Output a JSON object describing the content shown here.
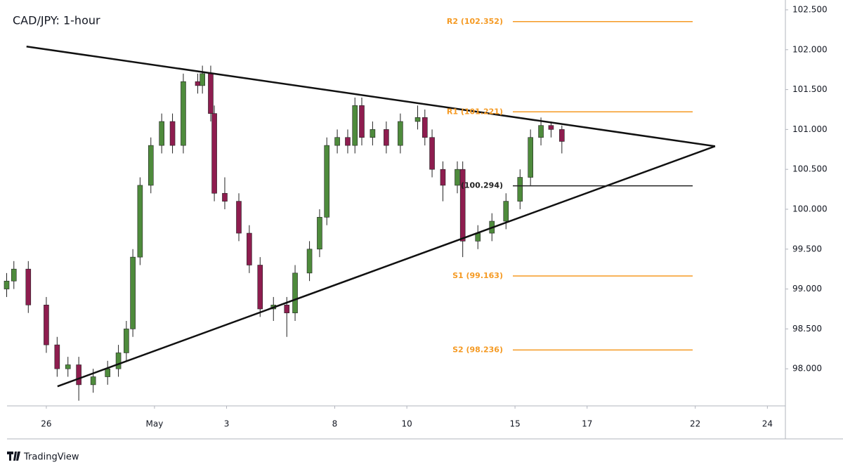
{
  "chart_data": {
    "type": "candlestick",
    "title": "CAD/JPY: 1-hour",
    "x": [
      -1.1,
      -0.9,
      -0.5,
      0,
      0.3,
      0.6,
      0.9,
      1.3,
      1.7,
      2.0,
      2.22,
      2.4,
      2.6,
      2.9,
      3.2,
      3.5,
      3.8,
      4.2,
      4.33,
      4.56,
      4.66,
      4.95,
      5.34,
      5.63,
      5.93,
      6.3,
      6.67,
      6.9,
      7.3,
      7.58,
      7.78,
      8.07,
      8.36,
      8.56,
      8.75,
      9.05,
      9.43,
      9.82,
      10.3,
      10.5,
      10.7,
      11.0,
      11.4,
      11.55,
      11.97,
      12.36,
      12.75,
      13.14,
      13.43,
      13.72,
      14.0,
      14.3
    ],
    "open": [
      99.0,
      99.1,
      99.25,
      98.8,
      98.3,
      98.0,
      98.05,
      97.8,
      97.9,
      98.0,
      98.2,
      98.5,
      99.4,
      100.3,
      100.8,
      101.1,
      100.8,
      101.6,
      101.55,
      101.7,
      101.2,
      100.2,
      100.1,
      99.7,
      99.3,
      98.75,
      98.8,
      98.7,
      99.2,
      99.5,
      99.9,
      100.8,
      100.9,
      100.8,
      101.3,
      100.9,
      101.0,
      100.8,
      101.1,
      101.15,
      100.9,
      100.5,
      100.3,
      100.5,
      99.6,
      99.7,
      99.85,
      100.1,
      100.4,
      100.9,
      101.05,
      101.0
    ],
    "high": [
      99.2,
      99.35,
      99.35,
      98.9,
      98.4,
      98.15,
      98.15,
      98.0,
      98.1,
      98.3,
      98.6,
      99.5,
      100.4,
      100.9,
      101.2,
      101.2,
      101.7,
      101.7,
      101.8,
      101.8,
      101.3,
      100.4,
      100.2,
      99.8,
      99.4,
      98.9,
      98.9,
      99.3,
      99.6,
      100.0,
      100.9,
      101.0,
      101.0,
      101.4,
      101.4,
      101.1,
      101.1,
      101.2,
      101.3,
      101.25,
      101.0,
      100.6,
      100.6,
      100.6,
      99.8,
      99.95,
      100.2,
      100.5,
      101.0,
      101.15,
      101.1,
      101.05
    ],
    "low": [
      98.9,
      99.0,
      98.7,
      98.2,
      97.9,
      97.9,
      97.6,
      97.7,
      97.8,
      97.9,
      98.1,
      98.4,
      99.3,
      100.2,
      100.7,
      100.7,
      100.7,
      101.45,
      101.45,
      101.1,
      100.1,
      100.0,
      99.6,
      99.2,
      98.65,
      98.6,
      98.4,
      98.6,
      99.1,
      99.4,
      99.8,
      100.7,
      100.7,
      100.7,
      100.8,
      100.8,
      100.7,
      100.7,
      101.0,
      100.8,
      100.4,
      100.1,
      100.2,
      99.4,
      99.5,
      99.6,
      99.75,
      100.0,
      100.3,
      100.8,
      100.9,
      100.7
    ],
    "close": [
      99.1,
      99.25,
      98.8,
      98.3,
      98.0,
      98.05,
      97.8,
      97.9,
      98.0,
      98.2,
      98.5,
      99.4,
      100.3,
      100.8,
      101.1,
      100.8,
      101.6,
      101.55,
      101.7,
      101.2,
      100.2,
      100.1,
      99.7,
      99.3,
      98.75,
      98.8,
      98.7,
      99.2,
      99.5,
      99.9,
      100.8,
      100.9,
      100.8,
      101.3,
      100.9,
      101.0,
      100.8,
      101.1,
      101.15,
      100.9,
      100.5,
      100.3,
      100.5,
      99.6,
      99.7,
      99.85,
      100.1,
      100.4,
      100.9,
      101.05,
      101.0,
      100.85
    ],
    "up_color": "#4e8b3c",
    "down_color": "#8e1d4f",
    "xlim": [
      -1.09,
      20.5
    ],
    "xticks": [
      {
        "value": 0,
        "label": "26"
      },
      {
        "value": 3,
        "label": "May"
      },
      {
        "value": 5,
        "label": "3"
      },
      {
        "value": 8,
        "label": "8"
      },
      {
        "value": 10,
        "label": "10"
      },
      {
        "value": 13,
        "label": "15"
      },
      {
        "value": 15,
        "label": "17"
      },
      {
        "value": 18,
        "label": "22"
      },
      {
        "value": 20,
        "label": "24"
      }
    ],
    "ylim": [
      97.535,
      102.623
    ],
    "yticks": [
      {
        "value": 98,
        "label": "98.000"
      },
      {
        "value": 98.5,
        "label": "98.500"
      },
      {
        "value": 99,
        "label": "99.000"
      },
      {
        "value": 99.5,
        "label": "99.500"
      },
      {
        "value": 100,
        "label": "100.000"
      },
      {
        "value": 100.5,
        "label": "100.500"
      },
      {
        "value": 101,
        "label": "101.000"
      },
      {
        "value": 101.5,
        "label": "101.500"
      },
      {
        "value": 102,
        "label": "102.000"
      },
      {
        "value": 102.5,
        "label": "102.500"
      }
    ],
    "grid": false,
    "trendlines": [
      {
        "x": [
          -0.55,
          18.55
        ],
        "y": [
          102.04,
          100.79
        ],
        "color": "#111111"
      },
      {
        "x": [
          0.31,
          18.55
        ],
        "y": [
          97.78,
          100.79
        ],
        "color": "#111111"
      }
    ],
    "levels": [
      {
        "label": "R2 (102.352)",
        "value": 102.352,
        "color": "#f59a23"
      },
      {
        "label": "R1 (101.221)",
        "value": 101.221,
        "color": "#f59a23"
      },
      {
        "label": "(100.294)",
        "value": 100.294,
        "color": "#222222"
      },
      {
        "label": "S1 (99.163)",
        "value": 99.163,
        "color": "#f59a23"
      },
      {
        "label": "S2 (98.236)",
        "value": 98.236,
        "color": "#f59a23"
      }
    ]
  },
  "footer": {
    "brand": "TradingView"
  }
}
